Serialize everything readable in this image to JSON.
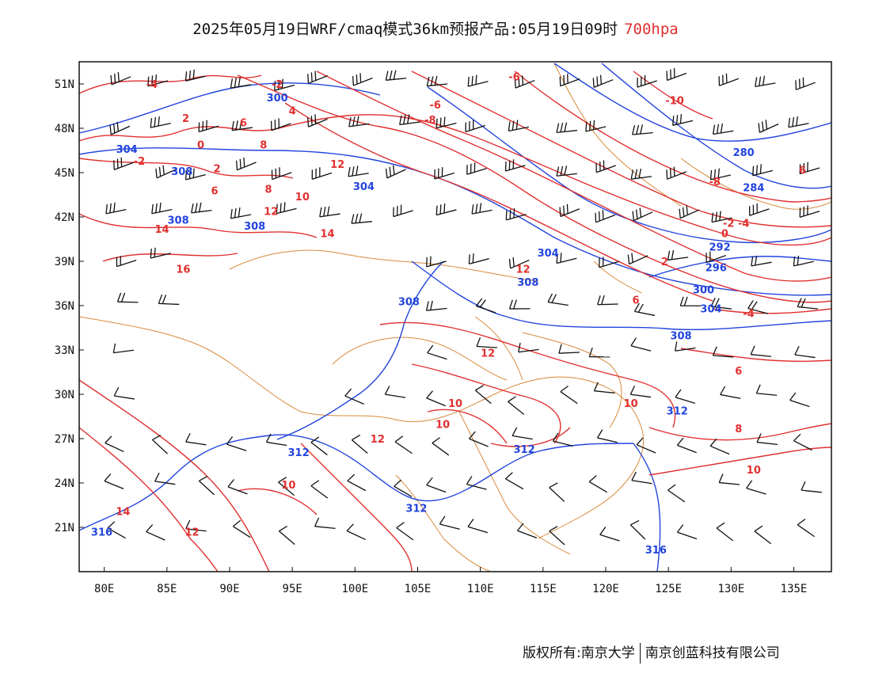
{
  "title": {
    "main": "2025年05月19日WRF/cmaq模式36km预报产品:05月19日09时",
    "level": "700hpa"
  },
  "axes": {
    "lat_labels": [
      "51N",
      "48N",
      "45N",
      "42N",
      "39N",
      "36N",
      "33N",
      "30N",
      "27N",
      "24N",
      "21N"
    ],
    "lon_labels": [
      "80E",
      "85E",
      "90E",
      "95E",
      "100E",
      "105E",
      "110E",
      "115E",
      "120E",
      "125E",
      "130E",
      "135E"
    ],
    "lat_values": [
      51,
      48,
      45,
      42,
      39,
      36,
      33,
      30,
      27,
      24,
      21
    ],
    "lon_values": [
      80,
      85,
      90,
      95,
      100,
      105,
      110,
      115,
      120,
      125,
      130,
      135
    ],
    "lat_range": [
      18,
      52.5
    ],
    "lon_range": [
      78,
      138
    ]
  },
  "colors": {
    "temperature": "#e03030",
    "geopotential": "#2244dd",
    "border": "#d88a3a",
    "wind": "#111111",
    "level_text": "#e03030"
  },
  "temperature_labels": [
    {
      "text": "-4",
      "lon": 83.8,
      "lat": 51.0
    },
    {
      "text": "-2",
      "lon": 93.8,
      "lat": 51.0
    },
    {
      "text": "-6",
      "lon": 112.7,
      "lat": 51.5
    },
    {
      "text": "-10",
      "lon": 125.5,
      "lat": 49.9
    },
    {
      "text": "2",
      "lon": 86.5,
      "lat": 48.7
    },
    {
      "text": "4",
      "lon": 95.0,
      "lat": 49.2
    },
    {
      "text": "6",
      "lon": 91.1,
      "lat": 48.4
    },
    {
      "text": "-6",
      "lon": 106.4,
      "lat": 49.6
    },
    {
      "text": "-8",
      "lon": 106.0,
      "lat": 48.6
    },
    {
      "text": "0",
      "lon": 87.7,
      "lat": 46.9
    },
    {
      "text": "-2",
      "lon": 82.8,
      "lat": 45.8
    },
    {
      "text": "8",
      "lon": 92.7,
      "lat": 46.9
    },
    {
      "text": "2",
      "lon": 89.0,
      "lat": 45.3
    },
    {
      "text": "12",
      "lon": 98.6,
      "lat": 45.6
    },
    {
      "text": "-8",
      "lon": 128.7,
      "lat": 44.4
    },
    {
      "text": "6",
      "lon": 88.8,
      "lat": 43.8
    },
    {
      "text": "8",
      "lon": 93.1,
      "lat": 43.9
    },
    {
      "text": "10",
      "lon": 95.8,
      "lat": 43.4
    },
    {
      "text": "12",
      "lon": 93.3,
      "lat": 42.4
    },
    {
      "text": "14",
      "lon": 84.6,
      "lat": 41.2
    },
    {
      "text": "14",
      "lon": 97.8,
      "lat": 40.9
    },
    {
      "text": "-2",
      "lon": 129.8,
      "lat": 41.6
    },
    {
      "text": "-4",
      "lon": 131.0,
      "lat": 41.6
    },
    {
      "text": "0",
      "lon": 129.5,
      "lat": 40.9
    },
    {
      "text": "2",
      "lon": 124.7,
      "lat": 39.0
    },
    {
      "text": "16",
      "lon": 86.3,
      "lat": 38.5
    },
    {
      "text": "12",
      "lon": 113.4,
      "lat": 38.5
    },
    {
      "text": "6",
      "lon": 122.4,
      "lat": 36.4
    },
    {
      "text": "-4",
      "lon": 131.4,
      "lat": 35.5
    },
    {
      "text": "12",
      "lon": 110.6,
      "lat": 32.8
    },
    {
      "text": "6",
      "lon": 130.6,
      "lat": 31.6
    },
    {
      "text": "6",
      "lon": 135.7,
      "lat": 45.2
    },
    {
      "text": "10",
      "lon": 108.0,
      "lat": 29.4
    },
    {
      "text": "10",
      "lon": 122.0,
      "lat": 29.4
    },
    {
      "text": "10",
      "lon": 107.0,
      "lat": 28.0
    },
    {
      "text": "12",
      "lon": 101.8,
      "lat": 27.0
    },
    {
      "text": "8",
      "lon": 130.6,
      "lat": 27.7
    },
    {
      "text": "10",
      "lon": 131.8,
      "lat": 24.9
    },
    {
      "text": "10",
      "lon": 94.7,
      "lat": 23.9
    },
    {
      "text": "14",
      "lon": 81.5,
      "lat": 22.1
    },
    {
      "text": "12",
      "lon": 87.0,
      "lat": 20.7
    }
  ],
  "geopotential_labels": [
    {
      "text": "300",
      "lon": 93.8,
      "lat": 50.1
    },
    {
      "text": "304",
      "lon": 81.8,
      "lat": 46.6
    },
    {
      "text": "308",
      "lon": 86.2,
      "lat": 45.1
    },
    {
      "text": "304",
      "lon": 100.7,
      "lat": 44.1
    },
    {
      "text": "280",
      "lon": 131.0,
      "lat": 46.4
    },
    {
      "text": "284",
      "lon": 131.8,
      "lat": 44.0
    },
    {
      "text": "308",
      "lon": 85.9,
      "lat": 41.8
    },
    {
      "text": "308",
      "lon": 92.0,
      "lat": 41.4
    },
    {
      "text": "292",
      "lon": 129.1,
      "lat": 40.0
    },
    {
      "text": "296",
      "lon": 128.8,
      "lat": 38.6
    },
    {
      "text": "304",
      "lon": 115.4,
      "lat": 39.6
    },
    {
      "text": "308",
      "lon": 113.8,
      "lat": 37.6
    },
    {
      "text": "308",
      "lon": 104.3,
      "lat": 36.3
    },
    {
      "text": "300",
      "lon": 127.8,
      "lat": 37.1
    },
    {
      "text": "304",
      "lon": 128.4,
      "lat": 35.8
    },
    {
      "text": "308",
      "lon": 126.0,
      "lat": 34.0
    },
    {
      "text": "312",
      "lon": 125.7,
      "lat": 28.9
    },
    {
      "text": "312",
      "lon": 113.5,
      "lat": 26.3
    },
    {
      "text": "312",
      "lon": 95.5,
      "lat": 26.1
    },
    {
      "text": "312",
      "lon": 104.9,
      "lat": 22.3
    },
    {
      "text": "316",
      "lon": 79.8,
      "lat": 20.7
    },
    {
      "text": "316",
      "lon": 124.0,
      "lat": 19.5
    }
  ],
  "copyright": {
    "left": "版权所有:南京大学",
    "right": "南京创蓝科技有限公司"
  }
}
